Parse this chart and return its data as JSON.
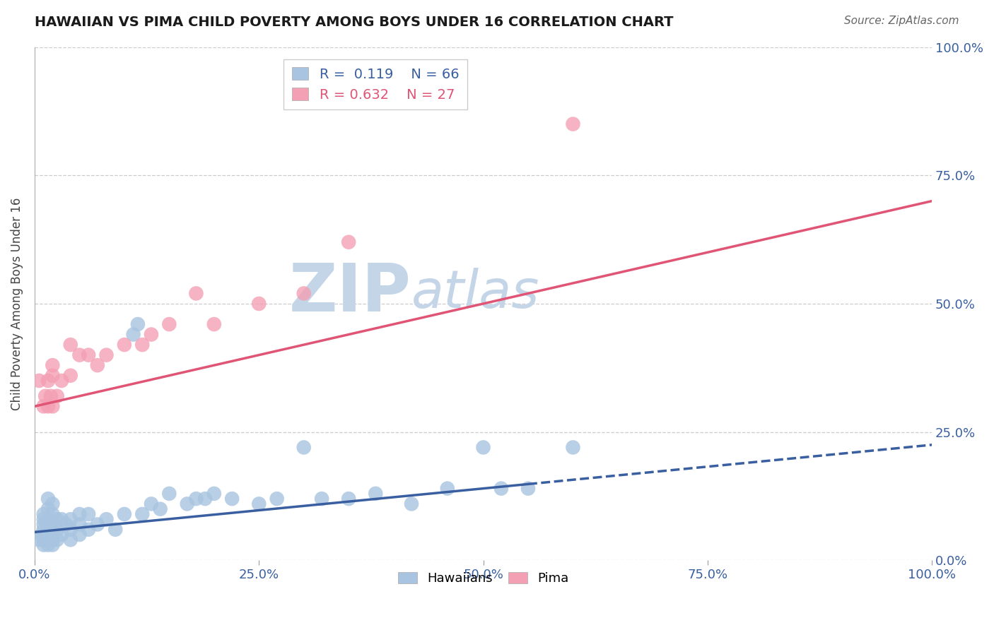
{
  "title": "HAWAIIAN VS PIMA CHILD POVERTY AMONG BOYS UNDER 16 CORRELATION CHART",
  "source": "Source: ZipAtlas.com",
  "ylabel": "Child Poverty Among Boys Under 16",
  "xlabel": "",
  "hawaiian_R": 0.119,
  "hawaiian_N": 66,
  "pima_R": 0.632,
  "pima_N": 27,
  "hawaiian_color": "#a8c4e0",
  "pima_color": "#f4a0b4",
  "hawaiian_line_color": "#3a5fa0",
  "pima_line_color": "#e05575",
  "title_color": "#1a1a1a",
  "source_color": "#666666",
  "watermark_zip_color": "#c5d5e8",
  "watermark_atlas_color": "#c5d5e8",
  "background_color": "#ffffff",
  "grid_color": "#cccccc",
  "axis_label_color": "#3a5fa0",
  "legend_text_color_h": "#3a5fa0",
  "legend_text_color_p": "#e05575",
  "hawaiian_x": [
    0.005,
    0.008,
    0.01,
    0.01,
    0.01,
    0.01,
    0.01,
    0.01,
    0.01,
    0.012,
    0.015,
    0.015,
    0.015,
    0.015,
    0.015,
    0.015,
    0.015,
    0.018,
    0.02,
    0.02,
    0.02,
    0.02,
    0.02,
    0.02,
    0.02,
    0.025,
    0.025,
    0.025,
    0.03,
    0.03,
    0.035,
    0.04,
    0.04,
    0.04,
    0.05,
    0.05,
    0.05,
    0.06,
    0.06,
    0.07,
    0.08,
    0.09,
    0.1,
    0.11,
    0.115,
    0.12,
    0.13,
    0.14,
    0.15,
    0.17,
    0.18,
    0.19,
    0.2,
    0.22,
    0.25,
    0.27,
    0.3,
    0.32,
    0.35,
    0.38,
    0.42,
    0.46,
    0.5,
    0.52,
    0.55,
    0.6
  ],
  "hawaiian_y": [
    0.04,
    0.05,
    0.03,
    0.04,
    0.05,
    0.06,
    0.07,
    0.08,
    0.09,
    0.04,
    0.03,
    0.04,
    0.05,
    0.07,
    0.08,
    0.1,
    0.12,
    0.04,
    0.03,
    0.04,
    0.05,
    0.06,
    0.07,
    0.09,
    0.11,
    0.04,
    0.06,
    0.08,
    0.05,
    0.08,
    0.07,
    0.04,
    0.06,
    0.08,
    0.05,
    0.07,
    0.09,
    0.06,
    0.09,
    0.07,
    0.08,
    0.06,
    0.09,
    0.44,
    0.46,
    0.09,
    0.11,
    0.1,
    0.13,
    0.11,
    0.12,
    0.12,
    0.13,
    0.12,
    0.11,
    0.12,
    0.22,
    0.12,
    0.12,
    0.13,
    0.11,
    0.14,
    0.22,
    0.14,
    0.14,
    0.22
  ],
  "pima_x": [
    0.005,
    0.01,
    0.012,
    0.015,
    0.015,
    0.018,
    0.02,
    0.02,
    0.02,
    0.025,
    0.03,
    0.04,
    0.04,
    0.05,
    0.06,
    0.07,
    0.08,
    0.1,
    0.12,
    0.13,
    0.15,
    0.18,
    0.2,
    0.25,
    0.3,
    0.35,
    0.6
  ],
  "pima_y": [
    0.35,
    0.3,
    0.32,
    0.3,
    0.35,
    0.32,
    0.3,
    0.36,
    0.38,
    0.32,
    0.35,
    0.36,
    0.42,
    0.4,
    0.4,
    0.38,
    0.4,
    0.42,
    0.42,
    0.44,
    0.46,
    0.52,
    0.46,
    0.5,
    0.52,
    0.62,
    0.85
  ],
  "xlim": [
    0.0,
    1.0
  ],
  "ylim": [
    0.0,
    1.0
  ],
  "xticks": [
    0.0,
    0.25,
    0.5,
    0.75,
    1.0
  ],
  "yticks": [
    0.0,
    0.25,
    0.5,
    0.75,
    1.0
  ],
  "xticklabels": [
    "0.0%",
    "25.0%",
    "50.0%",
    "75.0%",
    "100.0%"
  ],
  "yticklabels": [
    "0.0%",
    "25.0%",
    "50.0%",
    "75.0%",
    "100.0%"
  ],
  "hawaiian_line_solid_end": 0.55,
  "hawaiian_line_intercept": 0.055,
  "hawaiian_line_slope": 0.17,
  "pima_line_intercept": 0.3,
  "pima_line_slope": 0.4
}
